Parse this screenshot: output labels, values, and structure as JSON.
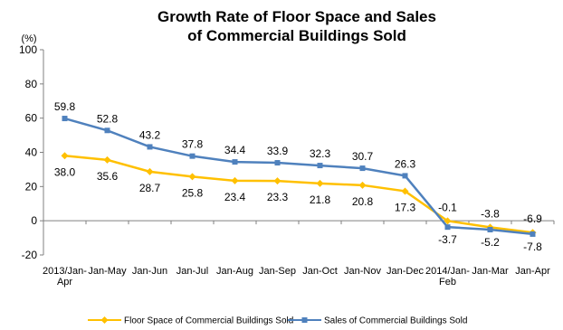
{
  "chart_data": {
    "type": "line",
    "title_line1": "Growth Rate of Floor Space and Sales",
    "title_line2": "of Commercial Buildings Sold",
    "ylabel": "(%)",
    "ylim": [
      -20,
      100
    ],
    "yticks": [
      -20,
      0,
      20,
      40,
      60,
      80,
      100
    ],
    "grid": false,
    "legend_position": "bottom",
    "categories": [
      [
        "2013/Jan-",
        "Apr"
      ],
      [
        "Jan-May"
      ],
      [
        "Jan-Jun"
      ],
      [
        "Jan-Jul"
      ],
      [
        "Jan-Aug"
      ],
      [
        "Jan-Sep"
      ],
      [
        "Jan-Oct"
      ],
      [
        "Jan-Nov"
      ],
      [
        "Jan-Dec"
      ],
      [
        "2014/Jan-",
        "Feb"
      ],
      [
        "Jan-Mar"
      ],
      [
        "Jan-Apr"
      ]
    ],
    "series": [
      {
        "name": "Floor Space of Commercial Buildings Sold",
        "color": "#FFC000",
        "marker": "diamond",
        "values": [
          38.0,
          35.6,
          28.7,
          25.8,
          23.4,
          23.3,
          21.8,
          20.8,
          17.3,
          -0.1,
          -3.8,
          -6.9
        ],
        "labels": [
          "38.0",
          "35.6",
          "28.7",
          "25.8",
          "23.4",
          "23.3",
          "21.8",
          "20.8",
          "17.3",
          "-0.1",
          "-3.8",
          "-6.9"
        ]
      },
      {
        "name": "Sales of Commercial Buildings Sold",
        "color": "#4F81BD",
        "marker": "square",
        "values": [
          59.8,
          52.8,
          43.2,
          37.8,
          34.4,
          33.9,
          32.3,
          30.7,
          26.3,
          -3.7,
          -5.2,
          -7.8
        ],
        "labels": [
          "59.8",
          "52.8",
          "43.2",
          "37.8",
          "34.4",
          "33.9",
          "32.3",
          "30.7",
          "26.3",
          "-3.7",
          "-5.2",
          "-7.8"
        ]
      }
    ]
  }
}
